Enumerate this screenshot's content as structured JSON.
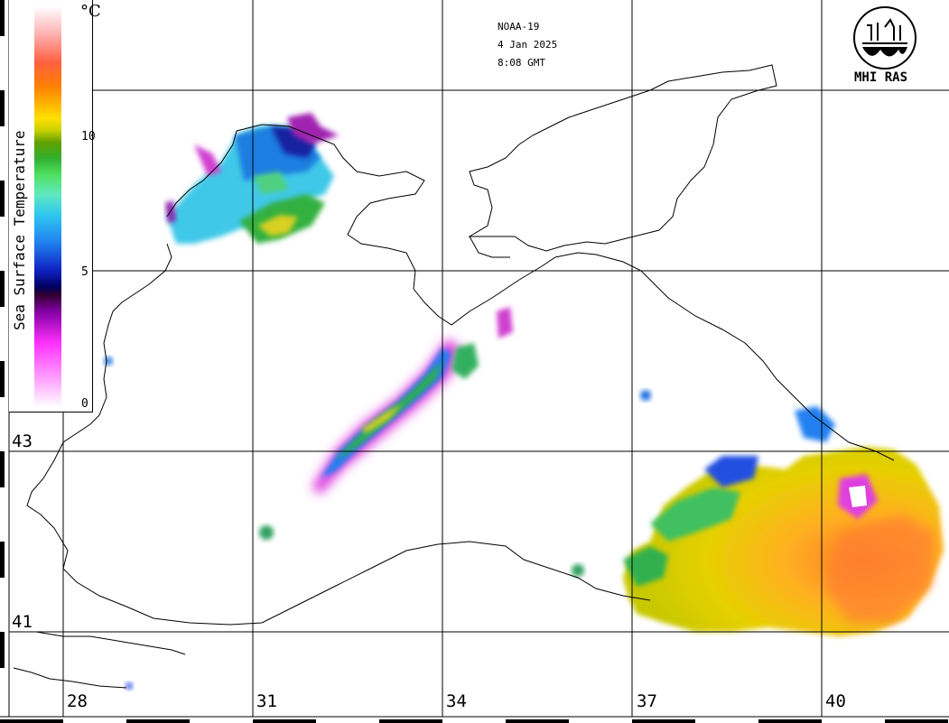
{
  "satellite": "NOAA-19",
  "date": "4 Jan 2025",
  "time": "8:08 GMT",
  "logo_text": "MHI RAS",
  "legend": {
    "title": "Sea Surface Temperature",
    "unit": "°C",
    "ticks": [
      "10",
      "5",
      "0"
    ]
  },
  "longitude_labels": [
    "28",
    "31",
    "34",
    "37",
    "40"
  ],
  "latitude_labels": [
    "43",
    "41"
  ],
  "colors": {
    "background": "#ffffff",
    "coastline": "#000000",
    "grid": "#000000"
  },
  "icons": {
    "logo": "mhi-ras-wave-logo"
  }
}
